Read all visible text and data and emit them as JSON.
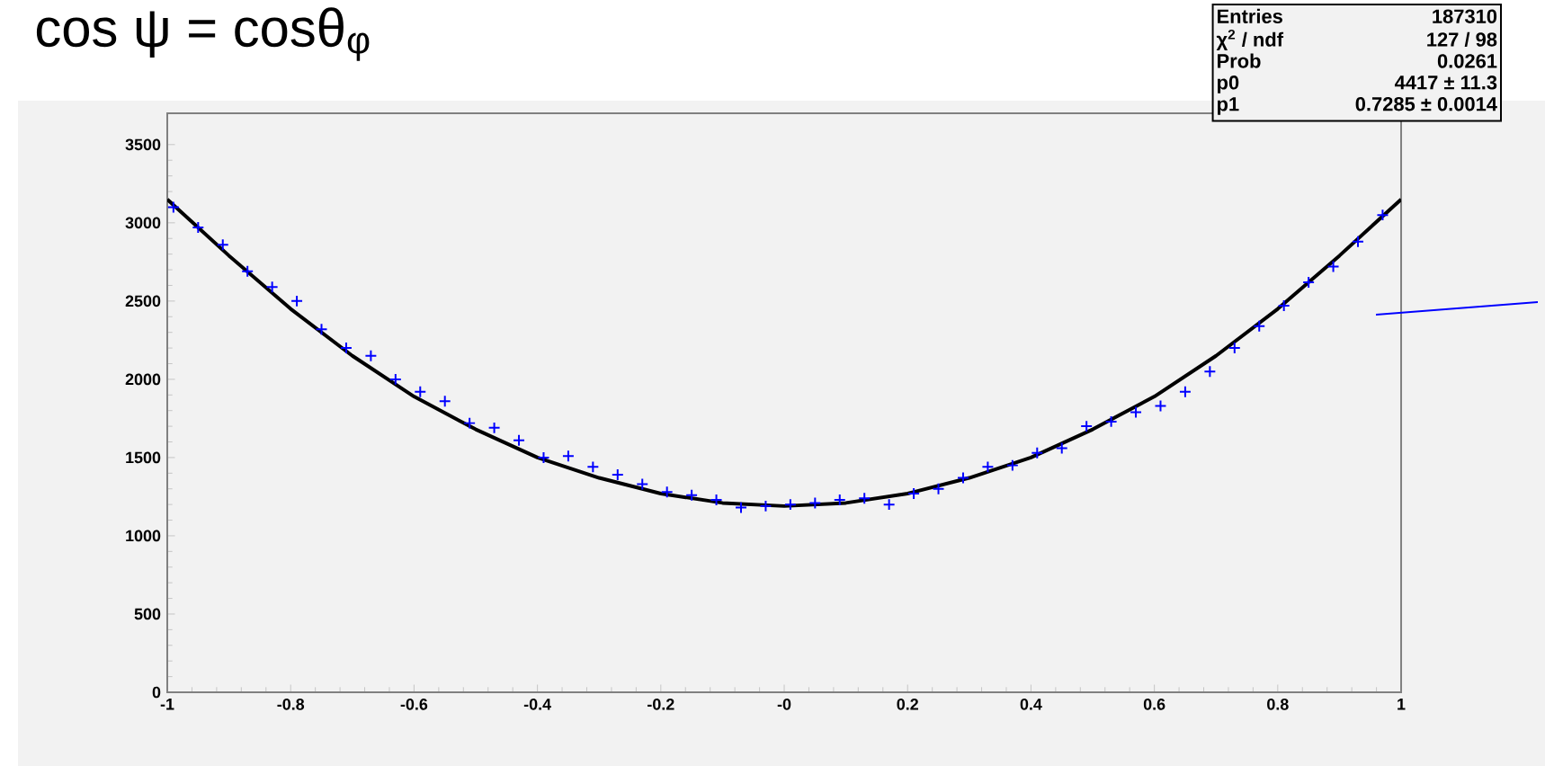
{
  "chart_data": {
    "type": "scatter",
    "title": "cos ψ = cosθ$_{φ}$",
    "annotations": [
      "Entries",
      "187310",
      "χ$^{2}$ / ndf",
      "127 / 98",
      "Prob",
      "0.0261",
      "p0",
      "4417 ± 11.3",
      "p1",
      "0.7285 ± 0.0014"
    ],
    "xlim": [
      -1,
      1
    ],
    "ylim": [
      0,
      3700
    ],
    "xticks": [
      -1,
      -0.8,
      -0.6,
      -0.4,
      -0.2,
      {
        "value": 0,
        "label": "-0"
      },
      0.2,
      0.4,
      0.6,
      0.8,
      1
    ],
    "yticks": [
      0,
      500,
      1000,
      1500,
      2000,
      2500,
      3000,
      3500
    ],
    "grid": false,
    "series": [
      {
        "color": "#0000ff",
        "marker": "cross",
        "x": [
          -0.99,
          -0.95,
          -0.91,
          -0.87,
          -0.83,
          -0.79,
          -0.75,
          -0.71,
          -0.67,
          -0.63,
          -0.59,
          -0.55,
          -0.51,
          -0.47,
          -0.43,
          -0.39,
          -0.35,
          -0.31,
          -0.27,
          -0.23,
          -0.19,
          -0.15,
          -0.11,
          -0.07,
          -0.03,
          0.01,
          0.05,
          0.09,
          0.13,
          0.17,
          0.21,
          0.25,
          0.29,
          0.33,
          0.37,
          0.41,
          0.45,
          0.49,
          0.53,
          0.57,
          0.61,
          0.65,
          0.69,
          0.73,
          0.77,
          0.81,
          0.85,
          0.89,
          0.93,
          0.97
        ],
        "values": [
          3100,
          2970,
          2860,
          2690,
          2590,
          2500,
          2320,
          2200,
          2150,
          2000,
          1920,
          1860,
          1720,
          1690,
          1610,
          1500,
          1510,
          1440,
          1390,
          1330,
          1280,
          1260,
          1230,
          1180,
          1190,
          1200,
          1210,
          1230,
          1240,
          1200,
          1270,
          1300,
          1370,
          1440,
          1450,
          1530,
          1560,
          1700,
          1730,
          1790,
          1830,
          1920,
          2050,
          2200,
          2340,
          2470,
          2620,
          2720,
          2880,
          3050
        ]
      },
      {
        "type": "line",
        "color": "#000000",
        "marker": "none",
        "line_style": "solid",
        "x": [
          -1,
          -0.9,
          -0.8,
          -0.7,
          -0.6,
          -0.5,
          -0.4,
          -0.3,
          -0.2,
          -0.1,
          0,
          0.1,
          0.2,
          0.3,
          0.4,
          0.5,
          0.6,
          0.7,
          0.8,
          0.9,
          1
        ],
        "values": [
          3150,
          2790,
          2450,
          2150,
          1890,
          1680,
          1500,
          1370,
          1270,
          1210,
          1190,
          1210,
          1270,
          1370,
          1500,
          1680,
          1890,
          2150,
          2450,
          2790,
          3150
        ]
      }
    ]
  }
}
